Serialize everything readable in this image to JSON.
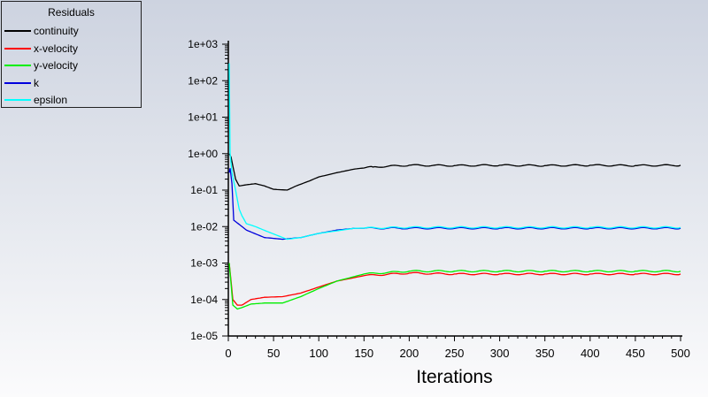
{
  "chart_data": {
    "type": "line",
    "title": "",
    "xlabel": "Iterations",
    "ylabel": "",
    "yscale": "log",
    "xlim": [
      0,
      500
    ],
    "ylim": [
      1e-05,
      1000
    ],
    "x_ticks": [
      "0",
      "50",
      "100",
      "150",
      "200",
      "250",
      "300",
      "350",
      "400",
      "450",
      "500"
    ],
    "y_ticks": [
      "1e+03",
      "1e+02",
      "1e+01",
      "1e+00",
      "1e-01",
      "1e-02",
      "1e-03",
      "1e-04",
      "1e-05"
    ],
    "grid": false,
    "legend": {
      "title": "Residuals",
      "placement": "top-left"
    },
    "series": [
      {
        "name": "continuity",
        "color": "#000000",
        "points": [
          [
            1,
            1.0
          ],
          [
            3,
            0.8
          ],
          [
            8,
            0.2
          ],
          [
            12,
            0.13
          ],
          [
            20,
            0.14
          ],
          [
            30,
            0.15
          ],
          [
            40,
            0.13
          ],
          [
            50,
            0.105
          ],
          [
            65,
            0.1
          ],
          [
            75,
            0.13
          ],
          [
            90,
            0.18
          ],
          [
            100,
            0.23
          ],
          [
            120,
            0.3
          ],
          [
            140,
            0.38
          ],
          [
            160,
            0.43
          ],
          [
            200,
            0.48
          ],
          [
            250,
            0.47
          ],
          [
            300,
            0.48
          ],
          [
            350,
            0.47
          ],
          [
            400,
            0.48
          ],
          [
            450,
            0.47
          ],
          [
            500,
            0.48
          ]
        ]
      },
      {
        "name": "x-velocity",
        "color": "#ff0000",
        "points": [
          [
            1,
            0.001
          ],
          [
            5,
            0.0001
          ],
          [
            10,
            7e-05
          ],
          [
            15,
            7e-05
          ],
          [
            25,
            0.0001
          ],
          [
            40,
            0.000115
          ],
          [
            60,
            0.00012
          ],
          [
            80,
            0.00015
          ],
          [
            100,
            0.00022
          ],
          [
            120,
            0.00032
          ],
          [
            150,
            0.00045
          ],
          [
            200,
            0.00053
          ],
          [
            250,
            0.0005
          ],
          [
            300,
            0.0005
          ],
          [
            350,
            0.0005
          ],
          [
            400,
            0.0005
          ],
          [
            450,
            0.0005
          ],
          [
            500,
            0.0005
          ]
        ]
      },
      {
        "name": "y-velocity",
        "color": "#00ee00",
        "points": [
          [
            1,
            0.001
          ],
          [
            5,
            7e-05
          ],
          [
            10,
            5.5e-05
          ],
          [
            15,
            6e-05
          ],
          [
            25,
            7.5e-05
          ],
          [
            40,
            8e-05
          ],
          [
            60,
            8e-05
          ],
          [
            80,
            0.00012
          ],
          [
            100,
            0.0002
          ],
          [
            120,
            0.00032
          ],
          [
            150,
            0.0005
          ],
          [
            200,
            0.0006
          ],
          [
            250,
            0.0006
          ],
          [
            300,
            0.0006
          ],
          [
            350,
            0.0006
          ],
          [
            400,
            0.0006
          ],
          [
            450,
            0.0006
          ],
          [
            500,
            0.0006
          ]
        ]
      },
      {
        "name": "k",
        "color": "#0000dd",
        "points": [
          [
            1,
            0.3
          ],
          [
            2,
            0.4
          ],
          [
            4,
            0.15
          ],
          [
            6,
            0.015
          ],
          [
            20,
            0.008
          ],
          [
            40,
            0.005
          ],
          [
            60,
            0.0045
          ],
          [
            80,
            0.005
          ],
          [
            100,
            0.0065
          ],
          [
            120,
            0.008
          ],
          [
            140,
            0.009
          ],
          [
            200,
            0.009
          ],
          [
            300,
            0.009
          ],
          [
            400,
            0.009
          ],
          [
            500,
            0.009
          ]
        ]
      },
      {
        "name": "epsilon",
        "color": "#00ffff",
        "points": [
          [
            1,
            300
          ],
          [
            2,
            1.0
          ],
          [
            4,
            0.3
          ],
          [
            8,
            0.1
          ],
          [
            12,
            0.03
          ],
          [
            15,
            0.02
          ],
          [
            20,
            0.012
          ],
          [
            30,
            0.01
          ],
          [
            45,
            0.007
          ],
          [
            65,
            0.0045
          ],
          [
            80,
            0.005
          ],
          [
            100,
            0.0065
          ],
          [
            140,
            0.009
          ],
          [
            200,
            0.0095
          ],
          [
            300,
            0.0095
          ],
          [
            400,
            0.0095
          ],
          [
            500,
            0.0095
          ]
        ]
      }
    ]
  }
}
